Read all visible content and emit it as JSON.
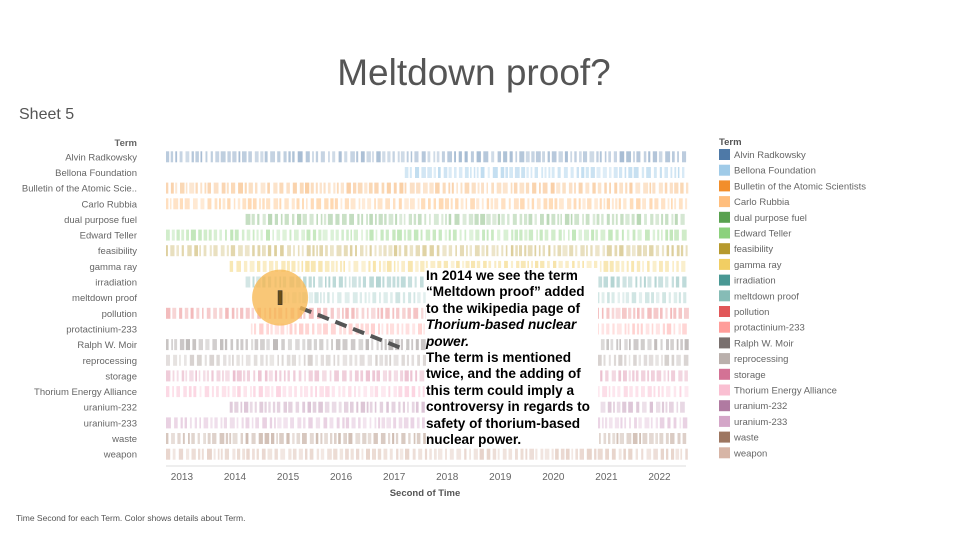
{
  "slide": {
    "title": "Meltdown proof?"
  },
  "sheet": {
    "title": "Sheet 5"
  },
  "footer": {
    "text": "Time Second for each Term.  Color shows details about Term."
  },
  "annotation": {
    "line1": "In 2014 we see the term “Meltdown proof” added to the wikipedia page of",
    "line2": "Thorium-based nuclear power.",
    "line3": "The term is mentioned twice, and the adding of this term could imply a controversy in regards to safety of thorium-based nuclear power."
  },
  "chart_data": {
    "type": "heatmap",
    "row_header": "Term",
    "xlabel": "Second of Time",
    "x_ticks": [
      "2013",
      "2014",
      "2015",
      "2016",
      "2017",
      "2018",
      "2019",
      "2020",
      "2021",
      "2022"
    ],
    "x_range": [
      2012.7,
      2022.5
    ],
    "highlight": {
      "term": "meltdown proof",
      "year": 2014.85
    },
    "rows": [
      {
        "label": "Alvin Radkowsky",
        "start": 2012.7,
        "end": 2022.5,
        "color": "#4e79a7",
        "alpha": 0.42
      },
      {
        "label": "Bellona Foundation",
        "start": 2017.2,
        "end": 2022.5,
        "color": "#a0cbe8",
        "alpha": 0.55
      },
      {
        "label": "Bulletin of the Atomic Scie..",
        "start": 2012.7,
        "end": 2022.5,
        "color": "#f28e2b",
        "alpha": 0.35
      },
      {
        "label": "Carlo Rubbia",
        "start": 2012.7,
        "end": 2022.5,
        "color": "#ffbe7d",
        "alpha": 0.5
      },
      {
        "label": "dual purpose fuel",
        "start": 2014.2,
        "end": 2022.5,
        "color": "#59a14f",
        "alpha": 0.35
      },
      {
        "label": "Edward Teller",
        "start": 2012.7,
        "end": 2022.5,
        "color": "#8cd17d",
        "alpha": 0.45
      },
      {
        "label": "feasibility",
        "start": 2012.7,
        "end": 2022.5,
        "color": "#b6992d",
        "alpha": 0.4
      },
      {
        "label": "gamma ray",
        "start": 2013.9,
        "end": 2022.5,
        "color": "#f1ce63",
        "alpha": 0.45
      },
      {
        "label": "irradiation",
        "start": 2014.2,
        "end": 2022.5,
        "color": "#499894",
        "alpha": 0.35
      },
      {
        "label": "meltdown proof",
        "start": 2014.9,
        "end": 2022.5,
        "color": "#86bcb6",
        "alpha": 0.35
      },
      {
        "label": "pollution",
        "start": 2012.7,
        "end": 2022.5,
        "color": "#e15759",
        "alpha": 0.35
      },
      {
        "label": "protactinium-233",
        "start": 2014.3,
        "end": 2022.5,
        "color": "#ff9d9a",
        "alpha": 0.4
      },
      {
        "label": "Ralph W. Moir",
        "start": 2012.7,
        "end": 2022.5,
        "color": "#79706e",
        "alpha": 0.4
      },
      {
        "label": "reprocessing",
        "start": 2012.7,
        "end": 2022.5,
        "color": "#bab0ac",
        "alpha": 0.5
      },
      {
        "label": "storage",
        "start": 2012.7,
        "end": 2022.5,
        "color": "#d37295",
        "alpha": 0.38
      },
      {
        "label": "Thorium Energy Alliance",
        "start": 2012.7,
        "end": 2022.5,
        "color": "#fabfd2",
        "alpha": 0.55
      },
      {
        "label": "uranium-232",
        "start": 2013.9,
        "end": 2022.5,
        "color": "#b07aa1",
        "alpha": 0.38
      },
      {
        "label": "uranium-233",
        "start": 2012.7,
        "end": 2022.5,
        "color": "#d4a6c8",
        "alpha": 0.45
      },
      {
        "label": "waste",
        "start": 2012.7,
        "end": 2022.5,
        "color": "#9d7660",
        "alpha": 0.4
      },
      {
        "label": "weapon",
        "start": 2012.7,
        "end": 2022.5,
        "color": "#d7b5a6",
        "alpha": 0.5
      }
    ],
    "legend": {
      "title": "Term",
      "placement": "right",
      "entries": [
        {
          "label": "Alvin Radkowsky",
          "color": "#4e79a7"
        },
        {
          "label": "Bellona Foundation",
          "color": "#a0cbe8"
        },
        {
          "label": "Bulletin of the Atomic Scientists",
          "color": "#f28e2b"
        },
        {
          "label": "Carlo Rubbia",
          "color": "#ffbe7d"
        },
        {
          "label": "dual purpose fuel",
          "color": "#59a14f"
        },
        {
          "label": "Edward Teller",
          "color": "#8cd17d"
        },
        {
          "label": "feasibility",
          "color": "#b6992d"
        },
        {
          "label": "gamma ray",
          "color": "#f1ce63"
        },
        {
          "label": "irradiation",
          "color": "#499894"
        },
        {
          "label": "meltdown proof",
          "color": "#86bcb6"
        },
        {
          "label": "pollution",
          "color": "#e15759"
        },
        {
          "label": "protactinium-233",
          "color": "#ff9d9a"
        },
        {
          "label": "Ralph W. Moir",
          "color": "#79706e"
        },
        {
          "label": "reprocessing",
          "color": "#bab0ac"
        },
        {
          "label": "storage",
          "color": "#d37295"
        },
        {
          "label": "Thorium Energy Alliance",
          "color": "#fabfd2"
        },
        {
          "label": "uranium-232",
          "color": "#b07aa1"
        },
        {
          "label": "uranium-233",
          "color": "#d4a6c8"
        },
        {
          "label": "waste",
          "color": "#9d7660"
        },
        {
          "label": "weapon",
          "color": "#d7b5a6"
        }
      ]
    }
  }
}
